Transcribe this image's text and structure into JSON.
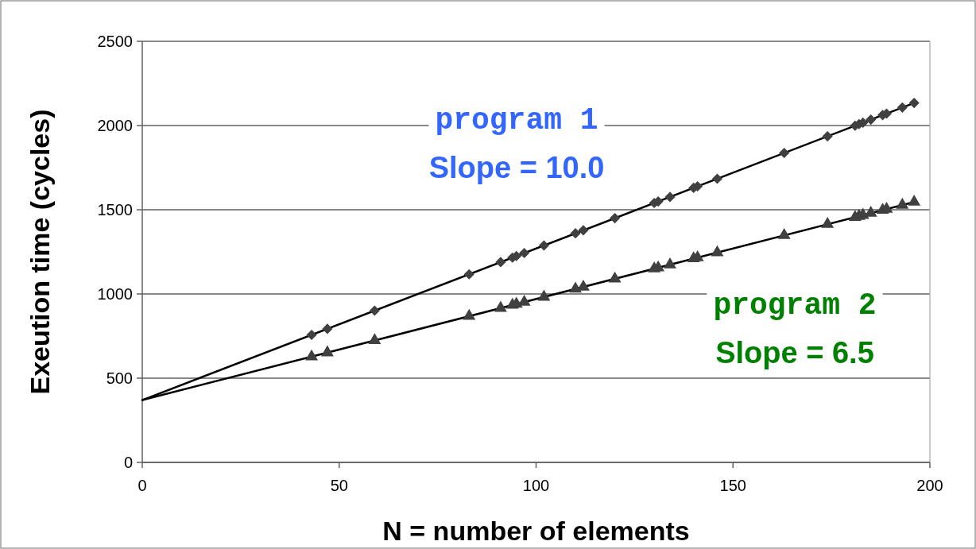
{
  "chart_data": {
    "type": "scatter",
    "xlabel": "N = number of elements",
    "ylabel": "Exeution time (cycles)",
    "xlim": [
      0,
      200
    ],
    "xticks": [
      0,
      50,
      100,
      150,
      200
    ],
    "ylim": [
      0,
      2500
    ],
    "yticks": [
      0,
      500,
      1000,
      1500,
      2000,
      2500
    ],
    "grid": "y",
    "annotations": [
      "program 1",
      "Slope = 10.0",
      "program 2",
      "Slope = 6.5"
    ],
    "series": [
      {
        "type": "line",
        "color": "#000000",
        "marker": "none",
        "x": [
          0,
          196
        ],
        "values": [
          370,
          2134
        ]
      },
      {
        "type": "line",
        "color": "#000000",
        "marker": "none",
        "x": [
          0,
          196
        ],
        "values": [
          370,
          1546
        ]
      },
      {
        "color": "#404040",
        "marker": "diamond",
        "x": [
          43,
          47,
          59,
          83,
          91,
          94,
          95,
          97,
          102,
          110,
          112,
          120,
          130,
          131,
          134,
          140,
          141,
          146,
          163,
          174,
          181,
          182,
          183,
          185,
          188,
          189,
          193,
          196
        ],
        "values": [
          757,
          793,
          901,
          1117,
          1189,
          1216,
          1225,
          1243,
          1288,
          1360,
          1378,
          1450,
          1540,
          1549,
          1576,
          1630,
          1639,
          1684,
          1837,
          1936,
          1999,
          2008,
          2017,
          2035,
          2062,
          2071,
          2107,
          2134
        ]
      },
      {
        "color": "#404040",
        "marker": "triangle",
        "x": [
          43,
          47,
          59,
          83,
          91,
          94,
          95,
          97,
          102,
          110,
          112,
          120,
          130,
          131,
          134,
          140,
          141,
          146,
          163,
          174,
          181,
          182,
          183,
          185,
          188,
          189,
          193,
          196
        ],
        "values": [
          628,
          652,
          724,
          868,
          916,
          934,
          940,
          952,
          982,
          1030,
          1042,
          1090,
          1150,
          1156,
          1174,
          1210,
          1216,
          1246,
          1348,
          1414,
          1456,
          1462,
          1468,
          1480,
          1498,
          1504,
          1528,
          1546
        ]
      }
    ]
  }
}
